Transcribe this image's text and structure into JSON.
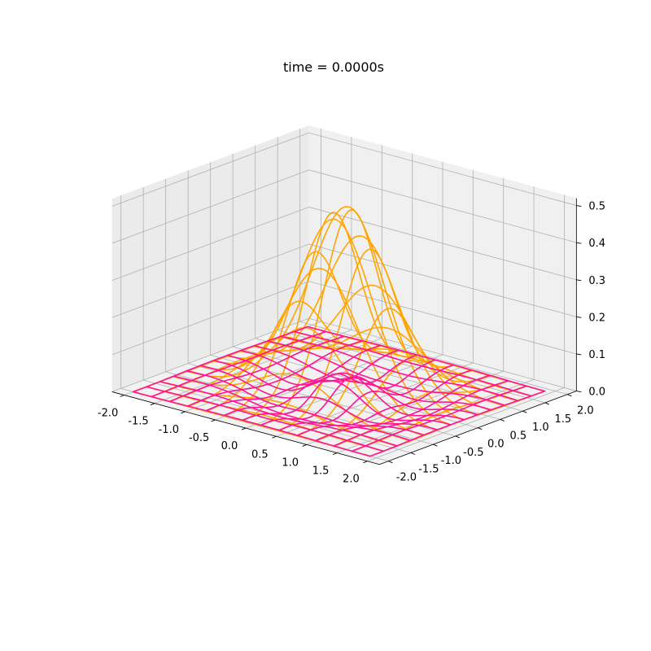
{
  "chart_data": {
    "type": "wireframe-3d",
    "title": "time = 0.0000s",
    "xlabel": "",
    "ylabel": "",
    "zlabel": "",
    "xlim": [
      -2.2,
      2.2
    ],
    "ylim": [
      -2.2,
      2.2
    ],
    "zlim": [
      0,
      0.52
    ],
    "x_ticks": [
      "-2.0",
      "-1.5",
      "-1.0",
      "-0.5",
      "0.0",
      "0.5",
      "1.0",
      "1.5",
      "2.0"
    ],
    "y_ticks": [
      "-2.0",
      "-1.5",
      "-1.0",
      "-0.5",
      "0.0",
      "0.5",
      "1.0",
      "1.5",
      "2.0"
    ],
    "z_ticks": [
      "0.0",
      "0.1",
      "0.2",
      "0.3",
      "0.4",
      "0.5"
    ],
    "grid": true,
    "grid_x": [
      -2.0,
      -1.7,
      -1.4,
      -1.1,
      -0.8,
      -0.5,
      -0.2,
      0.1,
      0.4,
      0.7,
      1.0,
      1.3,
      1.6,
      1.9
    ],
    "grid_y": [
      -2.0,
      -1.7,
      -1.4,
      -1.1,
      -0.8,
      -0.5,
      -0.2,
      0.1,
      0.4,
      0.7,
      1.0,
      1.3,
      1.6,
      1.9
    ],
    "series": [
      {
        "color": "#FFA500",
        "description": "gaussian pulse wireframe, peak amplitude 0.5 centered at origin",
        "amplitude": 0.5,
        "width": 0.72
      },
      {
        "color": "#FF1493",
        "description": "ripple wireframe on flat plane z = 0",
        "amplitude": 0.045,
        "width": 0.9
      }
    ]
  }
}
